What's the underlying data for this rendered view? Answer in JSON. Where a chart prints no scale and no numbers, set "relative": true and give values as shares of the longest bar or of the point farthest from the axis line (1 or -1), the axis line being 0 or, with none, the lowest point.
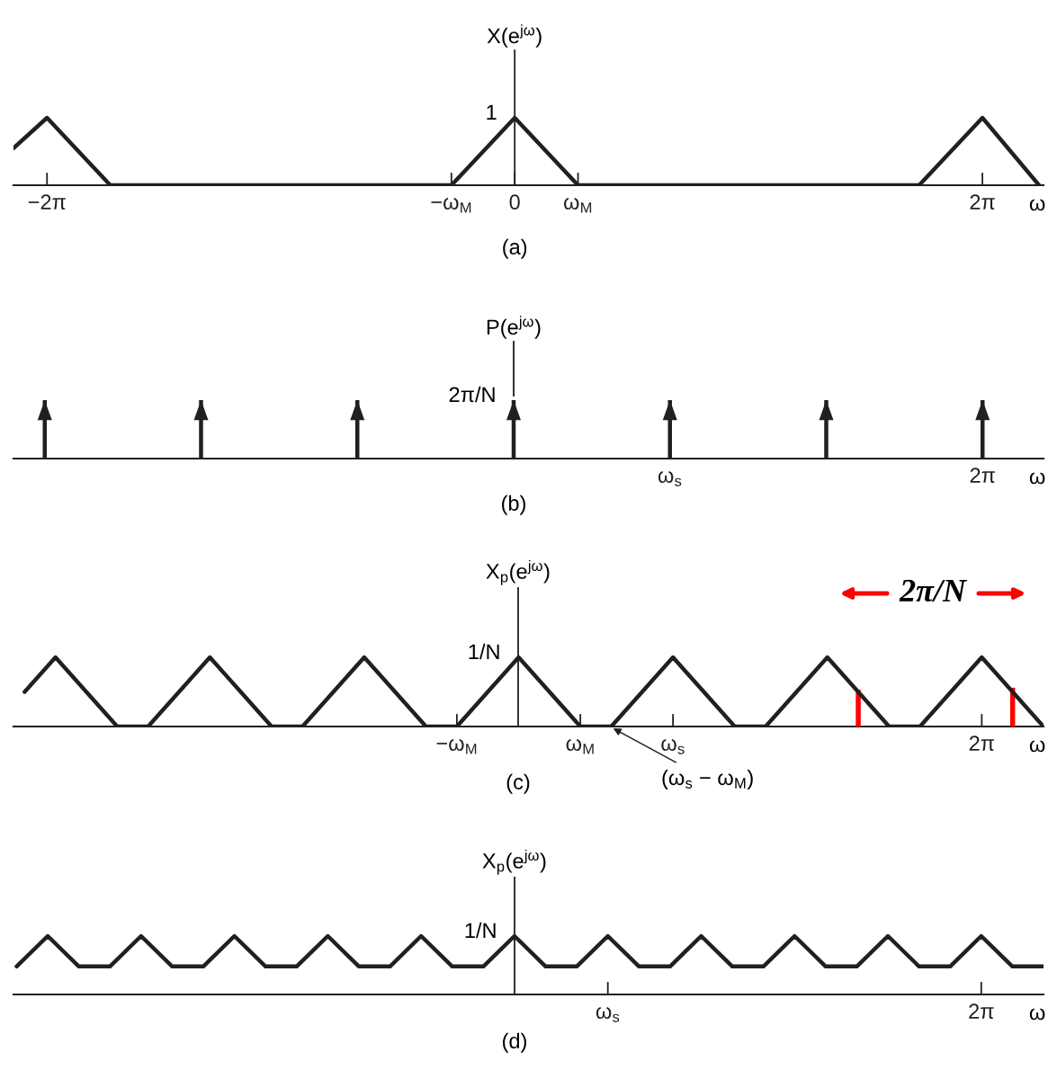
{
  "chart_data": [
    {
      "type": "line",
      "title": "(a)",
      "xlabel": "ω",
      "ylabel": "X(e$^{jω}$)",
      "relative": true,
      "x": [
        -6.73,
        -6.28,
        -5.43,
        -0.85,
        0,
        0.85,
        5.43,
        6.28,
        7.04
      ],
      "series": [
        {
          "color": "#231f20",
          "values": [
            0.55,
            1,
            0,
            0,
            1,
            0,
            0,
            1,
            0
          ]
        }
      ],
      "xlim": [
        -6.73,
        7.1
      ],
      "xticks": [
        {
          "value": -6.28,
          "label": "−2π"
        },
        {
          "value": -0.85,
          "label": "−ω$_{M}$"
        },
        0,
        {
          "value": 0.85,
          "label": "ω$_{M}$"
        },
        {
          "value": 6.28,
          "label": "2π"
        }
      ],
      "annotations": [
        "1"
      ]
    },
    {
      "type": "bar",
      "title": "(b)",
      "xlabel": "ω",
      "ylabel": "P(e$^{jω}$)",
      "relative": true,
      "marker": "triangle",
      "categories": [
        null,
        null,
        null,
        null,
        "ω$_{s}$",
        null,
        "2π"
      ],
      "series": [
        {
          "color": "#231f20",
          "values": [
            1,
            1,
            1,
            1,
            1,
            1,
            1
          ]
        }
      ],
      "annotations": [
        "2π/N"
      ]
    },
    {
      "type": "line",
      "title": "(c)",
      "xlabel": "ω",
      "ylabel": "X$_{p}$(e$^{jω}$)",
      "relative": true,
      "categories": [
        null,
        null,
        null,
        null,
        null,
        null,
        null,
        null,
        null,
        null,
        null,
        null,
        null,
        null,
        "−ω$_{M}$",
        null,
        null,
        null,
        "ω$_{M}$",
        null,
        null,
        "ω$_{s}$",
        null,
        null,
        null,
        null,
        null,
        null,
        null,
        null,
        null,
        "2π",
        null,
        null
      ],
      "series": [
        {
          "type": "line",
          "color": "#231f20",
          "values": [
            0.5,
            1,
            0.5,
            0,
            0,
            0.5,
            1,
            0.5,
            0,
            0,
            0.5,
            1,
            0.5,
            0,
            0,
            0.5,
            1,
            0.5,
            0,
            0,
            0.5,
            1,
            0.5,
            0,
            0,
            0.5,
            1,
            0.5,
            0,
            0,
            0.5,
            1,
            0.5,
            0
          ]
        },
        {
          "type": "bar",
          "color": "#ff0000",
          "values": [
            null,
            null,
            null,
            null,
            null,
            null,
            null,
            null,
            null,
            null,
            null,
            null,
            null,
            null,
            null,
            null,
            null,
            null,
            null,
            null,
            null,
            null,
            null,
            null,
            null,
            null,
            null,
            0.53,
            null,
            null,
            null,
            null,
            0.56,
            null
          ]
        }
      ],
      "annotations": [
        "1/N",
        "(ω$_{s}$ − ω$_{M}$)",
        "2π/N"
      ]
    },
    {
      "type": "line",
      "title": "(d)",
      "xlabel": "ω",
      "ylabel": "X$_{p}$(e$^{jω}$)",
      "relative": true,
      "categories": [
        null,
        null,
        null,
        null,
        null,
        null,
        null,
        null,
        null,
        null,
        null,
        null,
        null,
        null,
        null,
        null,
        null,
        null,
        null,
        "ω$_{s}$",
        null,
        null,
        null,
        null,
        null,
        null,
        null,
        null,
        null,
        null,
        null,
        "2π",
        null,
        null
      ],
      "series": [
        {
          "color": "#231f20",
          "values": [
            0.48,
            1,
            0.48,
            0.48,
            1,
            0.48,
            0.48,
            1,
            0.48,
            0.48,
            1,
            0.48,
            0.48,
            1,
            0.48,
            0.48,
            1,
            0.48,
            0.48,
            1,
            0.48,
            0.48,
            1,
            0.48,
            0.48,
            1,
            0.48,
            0.48,
            1,
            0.48,
            0.48,
            1,
            0.48,
            0.48
          ]
        }
      ],
      "annotations": [
        "1/N"
      ]
    }
  ]
}
